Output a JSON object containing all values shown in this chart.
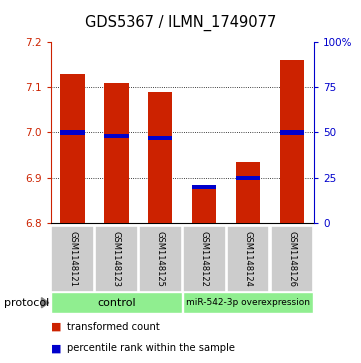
{
  "title": "GDS5367 / ILMN_1749077",
  "samples": [
    "GSM1148121",
    "GSM1148123",
    "GSM1148125",
    "GSM1148122",
    "GSM1148124",
    "GSM1148126"
  ],
  "transformed_counts": [
    7.13,
    7.11,
    7.09,
    6.875,
    6.935,
    7.16
  ],
  "percentile_ranks": [
    50,
    48,
    47,
    20,
    25,
    50
  ],
  "ylim_left": [
    6.8,
    7.2
  ],
  "ylim_right": [
    0,
    100
  ],
  "yticks_left": [
    6.8,
    6.9,
    7.0,
    7.1,
    7.2
  ],
  "yticks_right": [
    0,
    25,
    50,
    75,
    100
  ],
  "ytick_labels_right": [
    "0",
    "25",
    "50",
    "75",
    "100%"
  ],
  "bar_color": "#cc2200",
  "blue_color": "#0000cc",
  "bar_width": 0.55,
  "protocol_label": "protocol",
  "legend": [
    {
      "color": "#cc2200",
      "label": "transformed count"
    },
    {
      "color": "#0000cc",
      "label": "percentile rank within the sample"
    }
  ],
  "sample_box_color": "#cccccc",
  "green_color": "#90ee90"
}
